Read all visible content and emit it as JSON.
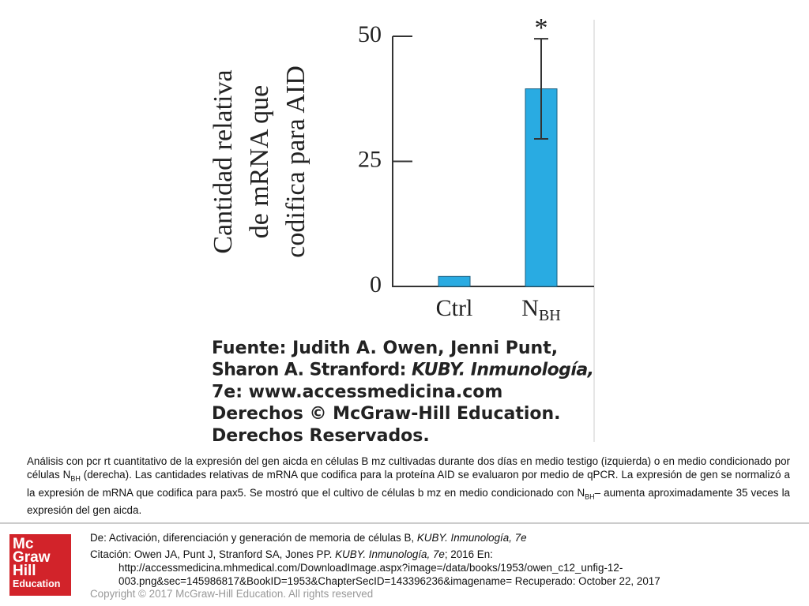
{
  "chart_data": {
    "type": "bar",
    "y_label": [
      "Cantidad relativa",
      "de mRNA que",
      "codifica para AID"
    ],
    "categories": [
      "Ctrl",
      "N"
    ],
    "category_subscripts": [
      null,
      "BH"
    ],
    "values": [
      2,
      39.5
    ],
    "errors": [
      null,
      10
    ],
    "color": "#29abe2",
    "annotations": [
      null,
      "*"
    ],
    "ylim": [
      0,
      50
    ],
    "yticks": [
      0,
      25,
      50
    ]
  },
  "source": [
    [
      "Fuente: Judith A. Owen, Jenni Punt,"
    ],
    [
      "Sharon A. Stranford: ",
      {
        "text": "KUBY. Inmunología,",
        "style": "i"
      }
    ],
    [
      "7e: www.accessmedicina.com"
    ],
    [
      "Derechos © McGraw-Hill Education."
    ],
    [
      "Derechos Reservados."
    ]
  ],
  "caption": [
    "Análisis con pcr rt cuantitativo de la expresión del gen aicda en células B mz cultivadas durante dos días en medio testigo (izquierda) o en medio condicionado por células N",
    {
      "text": "BH",
      "style": "sub"
    },
    " (derecha). Las cantidades relativas de mRNA que codifica para la proteína AID se evaluaron por medio de qPCR. La expresión de gen se normalizó a la expresión de mRNA que codifica para pax5. Se mostró que el cultivo de células b mz en medio condicionado con N",
    {
      "text": "BH",
      "style": "sub"
    },
    "– aumenta aproximadamente 35 veces la expresión del gen aicda."
  ],
  "logo": [
    "Mc",
    "Graw",
    "Hill",
    "Education"
  ],
  "footer": {
    "from": [
      "De: Activación, diferenciación y generación de memoria de células B, ",
      {
        "text": "KUBY. Inmunología, 7e",
        "style": "i"
      }
    ],
    "citation": [
      "Citación: Owen JA, Punt J, Stranford SA, Jones PP. ",
      {
        "text": "KUBY. Inmunología, 7e",
        "style": "i"
      },
      "; 2016 En:"
    ],
    "url": [
      "http://accessmedicina.mhmedical.com/DownloadImage.aspx?image=/data/books/1953/owen_c12_unfig-12-",
      "003.png&sec=145986817&BookID=1953&ChapterSecID=143396236&imagename= Recuperado: October 22, 2017"
    ],
    "copyright": "Copyright © 2017 McGraw-Hill Education. All rights reserved"
  }
}
